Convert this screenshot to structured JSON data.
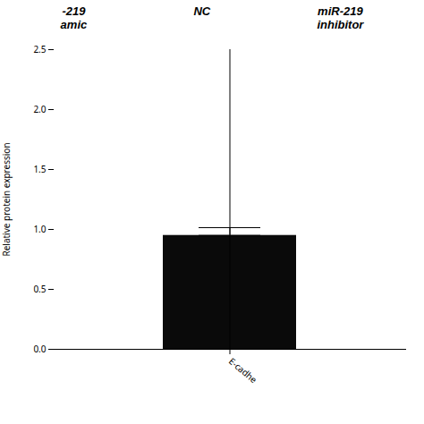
{
  "chart_data": {
    "type": "bar",
    "categories": [
      "E-cadhe"
    ],
    "values": [
      0.95
    ],
    "error_minus": [
      0
    ],
    "error_plus": [
      0.065
    ],
    "color": "#0a0a0a",
    "ylabel": "Relative protein expression",
    "ylim": [
      0.0,
      2.5
    ],
    "yticks": [
      {
        "value": 0.0,
        "label": "0.0"
      },
      0.5,
      {
        "value": 1.0,
        "label": "1.0"
      },
      1.5,
      {
        "value": 2.0,
        "label": "2.0"
      },
      2.5
    ],
    "grid": false,
    "annotations": [
      "-219\namic",
      "NC",
      "miR-219\ninhibitor"
    ]
  }
}
